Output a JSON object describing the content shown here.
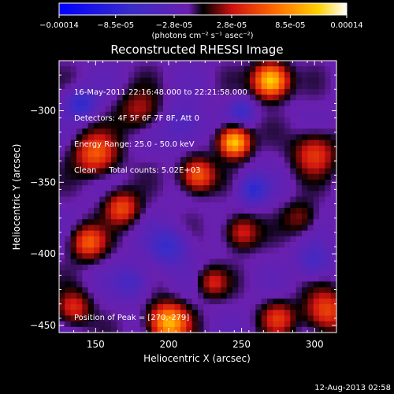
{
  "chart_data": {
    "type": "heatmap",
    "title": "Reconstructed RHESSI Image",
    "xlabel": "Heliocentric X (arcsec)",
    "ylabel": "Heliocentric Y (arcsec)",
    "xlim": [
      125,
      315
    ],
    "ylim": [
      -455,
      -265
    ],
    "xticks": [
      150,
      200,
      250,
      300
    ],
    "yticks": [
      -300,
      -350,
      -400,
      -450
    ],
    "colorbar": {
      "label": "(photons cm⁻² s⁻¹ asec⁻²)",
      "range": [
        -0.00014,
        0.00014
      ],
      "ticks": [
        {
          "value": -0.00014,
          "label": "-0.00014"
        },
        {
          "value": -8.5e-05,
          "label": "-8.5e-05"
        },
        {
          "value": -2.8e-05,
          "label": "-2.8e-05"
        },
        {
          "value": 2.8e-05,
          "label": "2.8e-05"
        },
        {
          "value": 8.5e-05,
          "label": "8.5e-05"
        },
        {
          "value": 0.00014,
          "label": "0.00014"
        }
      ]
    },
    "sources": [
      {
        "x": 270,
        "y": -279,
        "amp": 1.0,
        "s": 8
      },
      {
        "x": 245,
        "y": -322,
        "amp": 0.95,
        "s": 7
      },
      {
        "x": 220,
        "y": -345,
        "amp": 0.6,
        "s": 8
      },
      {
        "x": 200,
        "y": -448,
        "amp": 0.85,
        "s": 9
      },
      {
        "x": 150,
        "y": -330,
        "amp": 0.55,
        "s": 10
      },
      {
        "x": 168,
        "y": -368,
        "amp": 0.5,
        "s": 8
      },
      {
        "x": 145,
        "y": -392,
        "amp": 0.55,
        "s": 8
      },
      {
        "x": 250,
        "y": -385,
        "amp": 0.4,
        "s": 8
      },
      {
        "x": 300,
        "y": -330,
        "amp": 0.45,
        "s": 10
      },
      {
        "x": 308,
        "y": -440,
        "amp": 0.5,
        "s": 10
      },
      {
        "x": 275,
        "y": -445,
        "amp": 0.4,
        "s": 8
      },
      {
        "x": 230,
        "y": -420,
        "amp": 0.35,
        "s": 7
      },
      {
        "x": 135,
        "y": -438,
        "amp": 0.4,
        "s": 8
      },
      {
        "x": 180,
        "y": -300,
        "amp": 0.3,
        "s": 10
      },
      {
        "x": 290,
        "y": -375,
        "amp": 0.25,
        "s": 8
      },
      {
        "x": 258,
        "y": -355,
        "amp": -0.45,
        "s": 7
      },
      {
        "x": 200,
        "y": -395,
        "amp": -0.4,
        "s": 9
      },
      {
        "x": 140,
        "y": -295,
        "amp": -0.45,
        "s": 7
      },
      {
        "x": 250,
        "y": -300,
        "amp": -0.35,
        "s": 6
      },
      {
        "x": 210,
        "y": -310,
        "amp": -0.25,
        "s": 10
      },
      {
        "x": 300,
        "y": -405,
        "amp": -0.3,
        "s": 8
      },
      {
        "x": 175,
        "y": -420,
        "amp": -0.3,
        "s": 8
      }
    ]
  },
  "annotations": {
    "time": "16-May-2011 22:16:48.000 to 22:21:58.000",
    "detectors": "Detectors: 4F 5F 6F 7F 8F, Att 0",
    "energy": "Energy Range: 25.0 - 50.0 keV",
    "clean": "Clean     Total counts: 5.02E+03",
    "peak": "Position of Peak = [270,-279]"
  },
  "footer": "12-Aug-2013 02:58"
}
